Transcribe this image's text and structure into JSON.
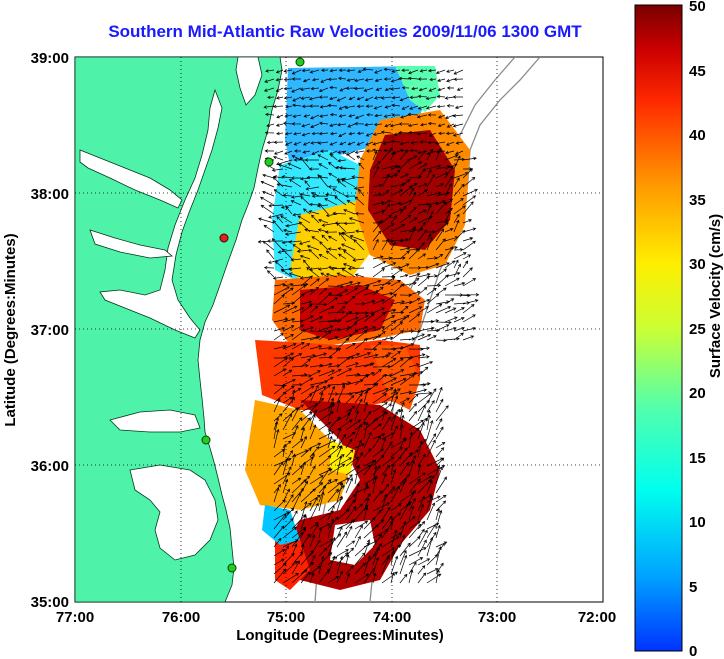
{
  "title": "Southern Mid-Atlantic Raw Velocities 2009/11/06 1300 GMT",
  "axes": {
    "xlabel": "Longitude (Degrees:Minutes)",
    "ylabel": "Latitude (Degrees:Minutes)",
    "x_ticks": [
      "77:00",
      "76:00",
      "75:00",
      "74:00",
      "73:00",
      "72:00"
    ],
    "y_ticks": [
      "39:00",
      "38:00",
      "37:00",
      "36:00",
      "35:00"
    ],
    "xlim": [
      -77,
      -72
    ],
    "ylim": [
      35,
      39
    ],
    "grid": "dotted"
  },
  "colorbar": {
    "label": "Surface Velocity (cm/s)",
    "ticks": [
      "50",
      "45",
      "40",
      "35",
      "30",
      "25",
      "20",
      "15",
      "10",
      "5",
      "0"
    ],
    "range": [
      0,
      50
    ],
    "colormap": "jet"
  },
  "colors": {
    "land": "#4ef2a8",
    "title": "#1a1aff",
    "coast_line": "#000000",
    "isobath": "#8c8c8c",
    "station_marker": "#22cc22",
    "station_marker_alt": "#dd2222"
  }
}
